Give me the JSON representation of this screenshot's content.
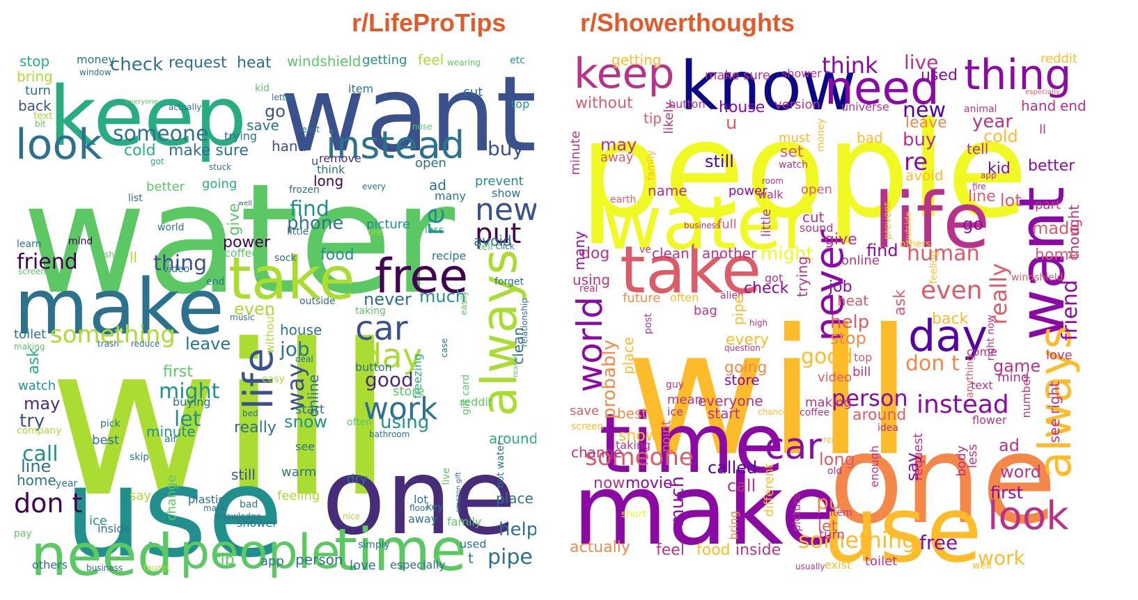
{
  "titles": {
    "left": "r/LifeProTips",
    "right": "r/Showerthoughts"
  },
  "title_color": "#e05a2a",
  "palettes": {
    "left": "viridis",
    "right": "plasma"
  },
  "clouds": {
    "left": {
      "words": [
        "will",
        "water",
        "use",
        "want",
        "keep",
        "one",
        "make",
        "take",
        "need",
        "people",
        "time",
        "always",
        "free",
        "life",
        "look",
        "instead",
        "car",
        "day",
        "work",
        "new",
        "put",
        "something",
        "someone",
        "check",
        "request",
        "heat",
        "windshield",
        "getting",
        "feel",
        "wearing",
        "etc",
        "stop",
        "money",
        "window",
        "bring",
        "turn",
        "back",
        "text",
        "bit",
        "go",
        "save",
        "trying",
        "hand",
        "buy",
        "cold",
        "make sure",
        "cut",
        "top",
        "kid",
        "letter",
        "actually",
        "everyone",
        "least",
        "nose",
        "item",
        "got",
        "stuck",
        "u",
        "remove",
        "list",
        "frozen",
        "every",
        "long",
        "think",
        "open",
        "better",
        "going",
        "give",
        "ad",
        "find",
        "prevent",
        "show",
        "many",
        "phone",
        "re",
        "avoid",
        "less",
        "well",
        "little",
        "world",
        "picture",
        "tire",
        "mind",
        "learn",
        "power",
        "coffee",
        "tell",
        "click",
        "share",
        "friend",
        "screen",
        "ll",
        "thing",
        "recipe",
        "sock",
        "food",
        "video",
        "end",
        "forget",
        "even",
        "never",
        "much",
        "outside",
        "easily",
        "taking",
        "music",
        "toilet",
        "making",
        "trash",
        "reduce",
        "leave",
        "house",
        "job",
        "clean",
        "relationship",
        "reason",
        "first",
        "without",
        "way",
        "ask",
        "deal",
        "button",
        "watch",
        "good",
        "might",
        "freezing",
        "case",
        "buying",
        "start",
        "online",
        "store",
        "let",
        "easy",
        "bed",
        "may",
        "reddit",
        "snow",
        "using",
        "minute",
        "really",
        "see",
        "often",
        "try",
        "company",
        "pick",
        "best",
        "air",
        "bathroom",
        "call",
        "skip",
        "around",
        "line",
        "home",
        "year",
        "still",
        "warm",
        "dry",
        "gift card",
        "amazon gift",
        "hot water",
        "don t",
        "change",
        "plastic",
        "mask",
        "bad",
        "live",
        "floor",
        "lot",
        "key",
        "place",
        "say",
        "feeling",
        "knowledge",
        "ice",
        "inside",
        "shower",
        "nice",
        "away",
        "family",
        "help",
        "pay",
        "simply",
        "used",
        "pipe",
        "t",
        "others",
        "business",
        "faucet",
        "tip",
        "app",
        "person",
        "love",
        "especially"
      ]
    },
    "right": {
      "words": [
        "people",
        "will",
        "one",
        "make",
        "use",
        "time",
        "take",
        "life",
        "want",
        "water",
        "keep",
        "know",
        "thing",
        "need",
        "day",
        "always",
        "world",
        "car",
        "never",
        "look",
        "something",
        "instead",
        "person",
        "someone",
        "good",
        "don t",
        "even",
        "work",
        "free",
        "really",
        "friend",
        "getting",
        "live",
        "reddit",
        "used",
        "think",
        "make sure",
        "shower",
        "likely",
        "without",
        "button",
        "version",
        "universe",
        "animal",
        "especially",
        "hand",
        "end",
        "tip",
        "house",
        "u",
        "new",
        "leave",
        "year",
        "cold",
        "ll",
        "tell",
        "buy",
        "may",
        "away",
        "must",
        "set",
        "watch",
        "money",
        "bad",
        "still",
        "re",
        "avoid",
        "kid",
        "better",
        "family",
        "room",
        "fire",
        "app",
        "line",
        "earth",
        "name",
        "power",
        "walk",
        "open",
        "lot",
        "part",
        "minute",
        "full",
        "business",
        "little",
        "sound",
        "cut",
        "give",
        "prevent",
        "outside",
        "go",
        "made",
        "thought",
        "many",
        "dog",
        "ve",
        "clean",
        "another",
        "might",
        "online",
        "find",
        "human",
        "others",
        "feeling",
        "home",
        "real",
        "using",
        "got",
        "trying",
        "check",
        "job",
        "heat",
        "alien",
        "often",
        "future",
        "bag",
        "pipe",
        "ask",
        "back",
        "probably",
        "high",
        "help",
        "stop",
        "question",
        "every",
        "windshield",
        "place",
        "post",
        "going",
        "top",
        "come",
        "anything",
        "right now",
        "game",
        "mind",
        "love",
        "guy",
        "store",
        "bill",
        "video",
        "text",
        "mean",
        "everyone",
        "making",
        "coffee",
        "start",
        "chance",
        "ice",
        "around",
        "number",
        "see right",
        "save",
        "best",
        "idea",
        "flower",
        "screen",
        "point",
        "snow",
        "taking",
        "change",
        "called",
        "long",
        "enough",
        "request",
        "recipe",
        "say",
        "ad",
        "word",
        "now",
        "movie",
        "call",
        "different",
        "body",
        "less",
        "old",
        "much",
        "put",
        "short",
        "let",
        "item",
        "first",
        "turn",
        "picture",
        "bring",
        "actually",
        "feel",
        "food",
        "inside",
        "exist",
        "usually",
        "toilet",
        "well"
      ]
    }
  }
}
